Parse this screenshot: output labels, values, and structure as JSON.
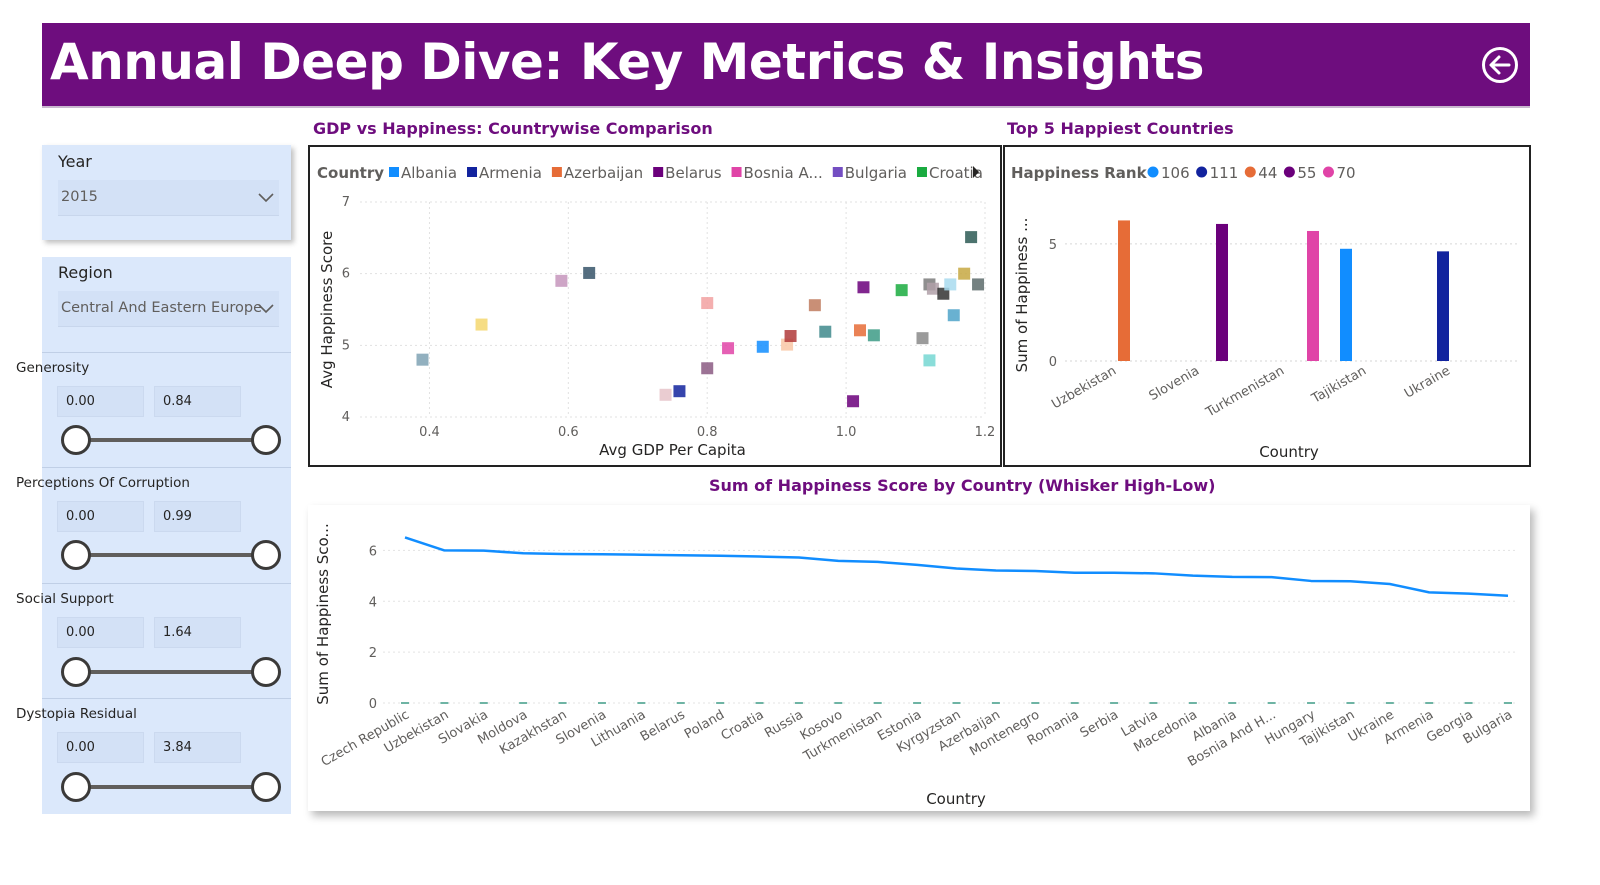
{
  "header": {
    "title": "Annual Deep Dive: Key Metrics & Insights",
    "back_icon": "back-arrow-circle-icon"
  },
  "filters": {
    "year": {
      "label": "Year",
      "value": "2015"
    },
    "region": {
      "label": "Region",
      "value": "Central And Eastern Europe"
    },
    "ranges": [
      {
        "label": "Generosity",
        "min": "0.00",
        "max": "0.84"
      },
      {
        "label": "Perceptions Of Corruption",
        "min": "0.00",
        "max": "0.99"
      },
      {
        "label": "Social Support",
        "min": "0.00",
        "max": "1.64"
      },
      {
        "label": "Dystopia Residual",
        "min": "0.00",
        "max": "3.84"
      }
    ]
  },
  "visuals": {
    "scatter_title": "GDP vs Happiness: Countrywise Comparison",
    "top5_title": "Top 5 Happiest Countries",
    "line_title": "Sum of Happiness Score by Country (Whisker High-Low)"
  },
  "chart_data": [
    {
      "type": "scatter",
      "title": "GDP vs Happiness: Countrywise Comparison",
      "xlabel": "Avg GDP Per Capita",
      "ylabel": "Avg Happiness Score",
      "xlim": [
        0.3,
        1.2
      ],
      "ylim": [
        4,
        7
      ],
      "xticks": [
        "0.4",
        "0.6",
        "0.8",
        "1.0",
        "1.2"
      ],
      "yticks": [
        "4",
        "5",
        "6",
        "7"
      ],
      "legend_title": "Country",
      "legend_position": "top",
      "legend": [
        {
          "name": "Albania",
          "color": "#118dff"
        },
        {
          "name": "Armenia",
          "color": "#12239e"
        },
        {
          "name": "Azerbaijan",
          "color": "#e66c37"
        },
        {
          "name": "Belarus",
          "color": "#6b007b"
        },
        {
          "name": "Bosnia A...",
          "color": "#e044a7"
        },
        {
          "name": "Bulgaria",
          "color": "#744ec2"
        },
        {
          "name": "Croatia",
          "color": "#1aab40"
        }
      ],
      "points": [
        {
          "x": 0.39,
          "y": 4.8,
          "color": "#7fa2b4"
        },
        {
          "x": 0.475,
          "y": 5.29,
          "color": "#f5d76e"
        },
        {
          "x": 0.59,
          "y": 5.9,
          "color": "#c595bc"
        },
        {
          "x": 0.63,
          "y": 6.01,
          "color": "#37556a"
        },
        {
          "x": 0.74,
          "y": 4.31,
          "color": "#e6c3c9"
        },
        {
          "x": 0.76,
          "y": 4.36,
          "color": "#12239e"
        },
        {
          "x": 0.8,
          "y": 4.68,
          "color": "#8b5a83"
        },
        {
          "x": 0.8,
          "y": 5.59,
          "color": "#f2a1a1"
        },
        {
          "x": 0.83,
          "y": 4.96,
          "color": "#e044a7"
        },
        {
          "x": 0.88,
          "y": 4.98,
          "color": "#118dff"
        },
        {
          "x": 0.915,
          "y": 5.01,
          "color": "#f9c7a6"
        },
        {
          "x": 0.92,
          "y": 5.13,
          "color": "#b03a3a"
        },
        {
          "x": 0.955,
          "y": 5.56,
          "color": "#bf7b5e"
        },
        {
          "x": 0.97,
          "y": 5.19,
          "color": "#3f8a8c"
        },
        {
          "x": 1.01,
          "y": 4.22,
          "color": "#6b007b"
        },
        {
          "x": 1.02,
          "y": 5.21,
          "color": "#e66c37"
        },
        {
          "x": 1.025,
          "y": 5.81,
          "color": "#6b007b"
        },
        {
          "x": 1.04,
          "y": 5.14,
          "color": "#3d9b86"
        },
        {
          "x": 1.08,
          "y": 5.77,
          "color": "#1aab40"
        },
        {
          "x": 1.11,
          "y": 5.1,
          "color": "#8a8a8a"
        },
        {
          "x": 1.12,
          "y": 4.79,
          "color": "#76d7d2"
        },
        {
          "x": 1.12,
          "y": 5.85,
          "color": "#7b7b7b"
        },
        {
          "x": 1.125,
          "y": 5.79,
          "color": "#b0a0a8"
        },
        {
          "x": 1.14,
          "y": 5.72,
          "color": "#333333"
        },
        {
          "x": 1.15,
          "y": 5.85,
          "color": "#a8dbef"
        },
        {
          "x": 1.155,
          "y": 5.42,
          "color": "#4fa3c9"
        },
        {
          "x": 1.17,
          "y": 6.0,
          "color": "#c7a842"
        },
        {
          "x": 1.18,
          "y": 6.51,
          "color": "#2d5a55"
        },
        {
          "x": 1.19,
          "y": 5.85,
          "color": "#5c6b6b"
        }
      ]
    },
    {
      "type": "bar",
      "title": "Top 5 Happiest Countries",
      "xlabel": "Country",
      "ylabel": "Sum of Happiness ...",
      "ylim": [
        0,
        7
      ],
      "yticks": [
        "0",
        "5"
      ],
      "legend_title": "Happiness Rank",
      "legend_position": "top",
      "legend": [
        {
          "name": "106",
          "color": "#118dff"
        },
        {
          "name": "111",
          "color": "#12239e"
        },
        {
          "name": "44",
          "color": "#e66c37"
        },
        {
          "name": "55",
          "color": "#6b007b"
        },
        {
          "name": "70",
          "color": "#e044a7"
        }
      ],
      "categories": [
        "Uzbekistan",
        "Slovenia",
        "Turkmenistan",
        "Tajikistan",
        "Ukraine"
      ],
      "bars": [
        {
          "category": "Uzbekistan",
          "rank": "44",
          "value": 6.0,
          "color": "#e66c37"
        },
        {
          "category": "Slovenia",
          "rank": "55",
          "value": 5.85,
          "color": "#6b007b"
        },
        {
          "category": "Turkmenistan",
          "rank": "70",
          "value": 5.55,
          "color": "#e044a7"
        },
        {
          "category": "Tajikistan",
          "rank": "106",
          "value": 4.79,
          "color": "#118dff"
        },
        {
          "category": "Ukraine",
          "rank": "111",
          "value": 4.68,
          "color": "#12239e"
        }
      ]
    },
    {
      "type": "line",
      "title": "Sum of Happiness Score by Country (Whisker High-Low)",
      "xlabel": "Country",
      "ylabel": "Sum of Happiness Sco...",
      "ylim": [
        0,
        7
      ],
      "yticks": [
        "0",
        "2",
        "4",
        "6"
      ],
      "series_color": "#118dff",
      "categories": [
        "Czech Republic",
        "Uzbekistan",
        "Slovakia",
        "Moldova",
        "Kazakhstan",
        "Slovenia",
        "Lithuania",
        "Belarus",
        "Poland",
        "Croatia",
        "Russia",
        "Kosovo",
        "Turkmenistan",
        "Estonia",
        "Kyrgyzstan",
        "Azerbaijan",
        "Montenegro",
        "Romania",
        "Serbia",
        "Latvia",
        "Macedonia",
        "Albania",
        "Bosnia And H...",
        "Hungary",
        "Tajikistan",
        "Ukraine",
        "Armenia",
        "Georgia",
        "Bulgaria"
      ],
      "values": [
        6.51,
        6.0,
        5.99,
        5.89,
        5.86,
        5.85,
        5.83,
        5.81,
        5.79,
        5.76,
        5.72,
        5.59,
        5.55,
        5.43,
        5.29,
        5.21,
        5.19,
        5.12,
        5.12,
        5.1,
        5.01,
        4.96,
        4.95,
        4.8,
        4.79,
        4.68,
        4.35,
        4.3,
        4.22
      ]
    }
  ]
}
